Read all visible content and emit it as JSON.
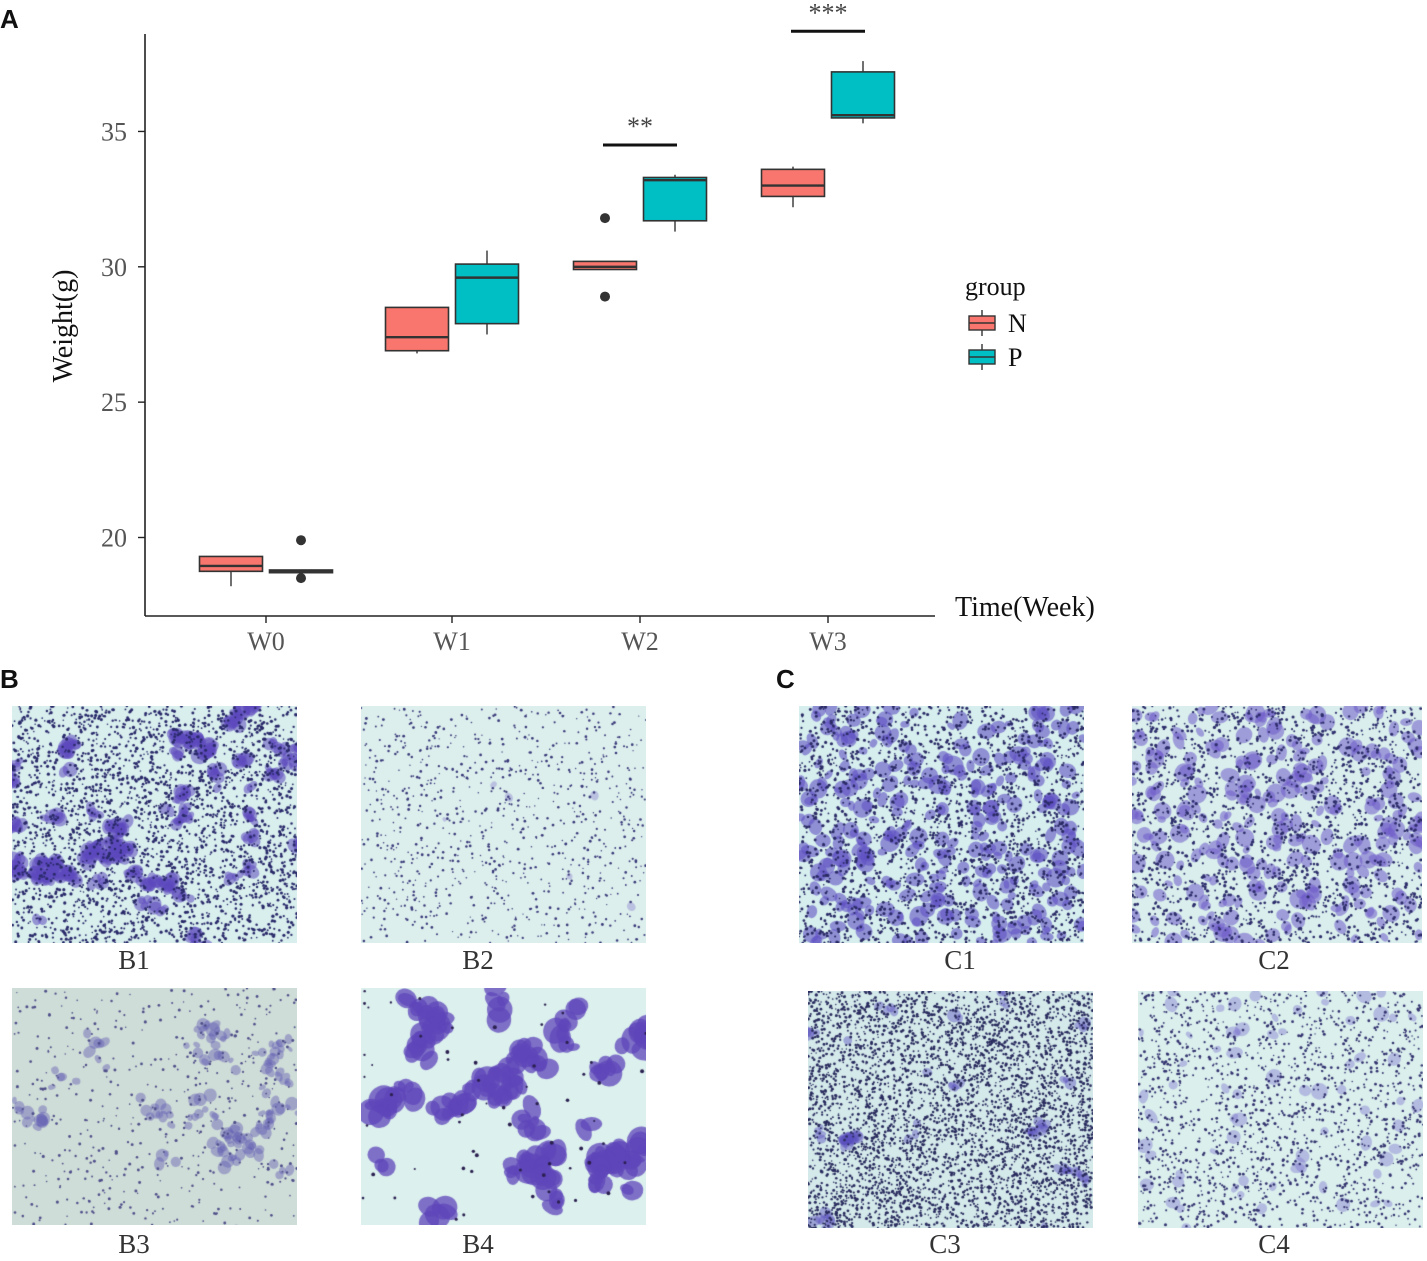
{
  "panels": {
    "a": "A",
    "b": "B",
    "c": "C"
  },
  "chart_data": {
    "type": "boxplot",
    "xlabel": "Time(Week)",
    "ylabel": "Weight(g)",
    "ylim": [
      17.1,
      38.6
    ],
    "yticks": [
      20,
      25,
      30,
      35
    ],
    "categories": [
      "W0",
      "W1",
      "W2",
      "W3"
    ],
    "legend": {
      "title": "group",
      "position": "right"
    },
    "series": [
      {
        "name": "N",
        "color": "#F8766D",
        "boxes": [
          {
            "min": 18.2,
            "q1": 18.75,
            "median": 18.95,
            "q3": 19.3,
            "max": 19.3,
            "outliers": []
          },
          {
            "min": 26.8,
            "q1": 26.9,
            "median": 27.4,
            "q3": 28.5,
            "max": 28.5,
            "outliers": []
          },
          {
            "min": 29.9,
            "q1": 29.9,
            "median": 30.0,
            "q3": 30.2,
            "max": 30.2,
            "outliers": [
              31.8,
              28.9
            ]
          },
          {
            "min": 32.2,
            "q1": 32.6,
            "median": 33.0,
            "q3": 33.6,
            "max": 33.7,
            "outliers": []
          }
        ]
      },
      {
        "name": "P",
        "color": "#00BFC4",
        "boxes": [
          {
            "min": 18.7,
            "q1": 18.7,
            "median": 18.75,
            "q3": 18.8,
            "max": 18.8,
            "outliers": [
              19.9,
              18.5
            ]
          },
          {
            "min": 27.5,
            "q1": 27.9,
            "median": 29.6,
            "q3": 30.1,
            "max": 30.6,
            "outliers": []
          },
          {
            "min": 31.3,
            "q1": 31.7,
            "median": 33.2,
            "q3": 33.3,
            "max": 33.4,
            "outliers": []
          },
          {
            "min": 35.3,
            "q1": 35.5,
            "median": 35.6,
            "q3": 37.2,
            "max": 37.6,
            "outliers": []
          }
        ]
      }
    ],
    "significance": [
      {
        "category": "W2",
        "label": "**",
        "y": 34.5
      },
      {
        "category": "W3",
        "label": "***",
        "y": 38.7
      }
    ]
  },
  "micrographs": {
    "B": [
      {
        "label": "B1",
        "style": "dense-clusters"
      },
      {
        "label": "B2",
        "style": "sparse-dots"
      },
      {
        "label": "B3",
        "style": "gray-clumps"
      },
      {
        "label": "B4",
        "style": "large-cells"
      }
    ],
    "C": [
      {
        "label": "C1",
        "style": "dense-scattered"
      },
      {
        "label": "C2",
        "style": "medium-scattered"
      },
      {
        "label": "C3",
        "style": "dense-dots"
      },
      {
        "label": "C4",
        "style": "light-scattered"
      }
    ]
  }
}
